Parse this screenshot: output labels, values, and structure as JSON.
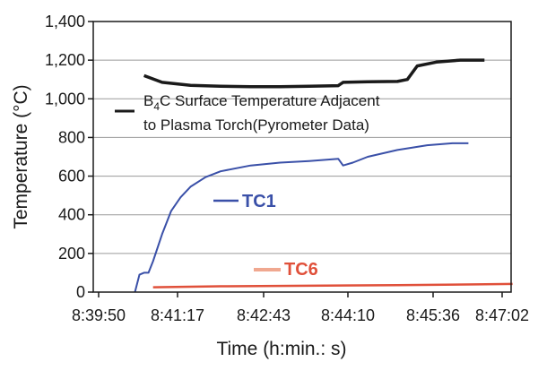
{
  "chart_data": {
    "type": "line",
    "xlabel": "Time (h:min.: s)",
    "ylabel": "Temperature (°C)",
    "x_tick_labels": [
      "8:39:50",
      "8:41:17",
      "8:42:43",
      "8:44:10",
      "8:45:36",
      "8:47:02"
    ],
    "y_tick_labels": [
      "0",
      "200",
      "400",
      "600",
      "800",
      "1,000",
      "1,200",
      "1,400"
    ],
    "xlim": [
      "8:39:50",
      "8:47:02"
    ],
    "ylim": [
      0,
      1400
    ],
    "grid": "horizontal",
    "series": [
      {
        "name": "B4C Surface Temperature Adjacent to Plasma Torch(Pyrometer Data)",
        "label_line1_prefix": "B",
        "label_line1_subscript": "4",
        "label_line1_suffix": "C Surface Temperature Adjacent",
        "label_line2": "to Plasma Torch(Pyrometer Data)",
        "color": "#1a1a1a",
        "x": [
          "8:40:40",
          "8:41:00",
          "8:41:30",
          "8:42:00",
          "8:42:30",
          "8:43:00",
          "8:43:30",
          "8:44:00",
          "8:44:05",
          "8:44:30",
          "8:45:00",
          "8:45:10",
          "8:45:20",
          "8:45:40",
          "8:46:10",
          "8:46:40"
        ],
        "y": [
          1120,
          1085,
          1070,
          1065,
          1063,
          1063,
          1065,
          1068,
          1085,
          1088,
          1090,
          1100,
          1170,
          1190,
          1200,
          1200
        ]
      },
      {
        "name": "TC1",
        "color": "#3a50a8",
        "x": [
          "8:40:30",
          "8:40:35",
          "8:40:40",
          "8:40:45",
          "8:40:50",
          "8:41:00",
          "8:41:10",
          "8:41:20",
          "8:41:30",
          "8:41:45",
          "8:42:00",
          "8:42:30",
          "8:43:00",
          "8:43:30",
          "8:44:00",
          "8:44:05",
          "8:44:15",
          "8:44:30",
          "8:45:00",
          "8:45:30",
          "8:46:00",
          "8:46:20"
        ],
        "y": [
          0,
          90,
          100,
          100,
          160,
          300,
          420,
          490,
          545,
          595,
          625,
          655,
          670,
          678,
          690,
          655,
          670,
          700,
          735,
          760,
          770,
          770
        ]
      },
      {
        "name": "TC6",
        "color": "#e0503a",
        "x": [
          "8:40:50",
          "8:42:00",
          "8:43:30",
          "8:45:00",
          "8:46:30",
          "8:47:15"
        ],
        "y": [
          25,
          30,
          33,
          36,
          40,
          42
        ]
      }
    ]
  }
}
